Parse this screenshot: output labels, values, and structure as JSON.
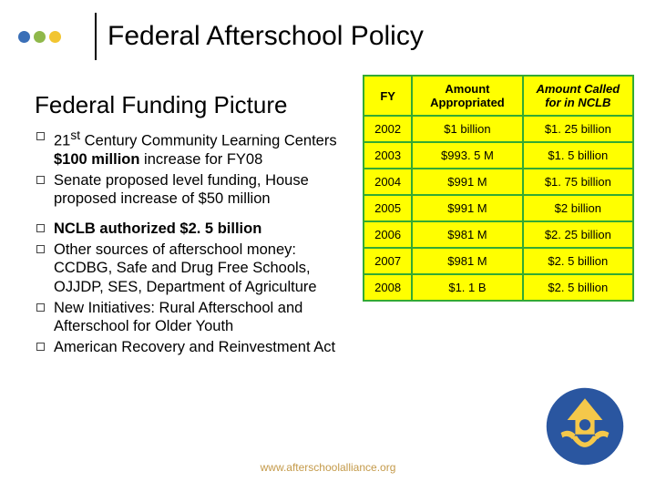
{
  "dot_colors": [
    "#3a6fb7",
    "#8fb84a",
    "#f2c531"
  ],
  "title": "Federal Afterschool Policy",
  "subtitle": "Federal Funding Picture",
  "bullets": [
    {
      "html": "21<sup>st</sup> Century Community Learning Centers <b>$100 million</b> increase for FY08"
    },
    {
      "html": "Senate proposed level funding, House proposed increase of $50 million"
    },
    {
      "html": "<b>NCLB authorized $2. 5 billion</b>"
    },
    {
      "html": "Other sources of afterschool money: CCDBG, Safe and Drug Free Schools, OJJDP, SES, Department of Agriculture"
    },
    {
      "html": "New Initiatives: Rural Afterschool and Afterschool for Older Youth"
    },
    {
      "html": "American Recovery and Reinvestment Act"
    }
  ],
  "group_break_after": 1,
  "table": {
    "headers": [
      "FY",
      "Amount Appropriated",
      "Amount Called for in NCLB"
    ],
    "header_italic": [
      false,
      false,
      true
    ],
    "rows": [
      [
        "2002",
        "$1 billion",
        "$1. 25 billion"
      ],
      [
        "2003",
        "$993. 5 M",
        "$1. 5 billion"
      ],
      [
        "2004",
        "$991 M",
        "$1. 75 billion"
      ],
      [
        "2005",
        "$991 M",
        "$2 billion"
      ],
      [
        "2006",
        "$981 M",
        "$2. 25 billion"
      ],
      [
        "2007",
        "$981 M",
        "$2. 5 billion"
      ],
      [
        "2008",
        "$1. 1 B",
        "$2. 5 billion"
      ]
    ],
    "border_color": "#33aa33",
    "bg_color": "#ffff00",
    "col_widths": [
      "18%",
      "41%",
      "41%"
    ]
  },
  "footer_url": "www.afterschoolalliance.org",
  "logo_colors": {
    "circle": "#2a56a0",
    "figure": "#f5c84a"
  }
}
